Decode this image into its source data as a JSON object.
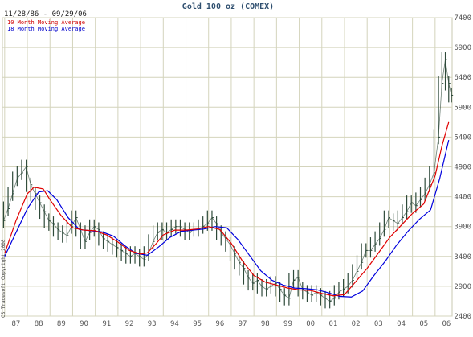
{
  "chart_data": {
    "type": "line",
    "title": "Gold 100 oz (COMEX)",
    "date_range": "11/28/86 - 09/29/06",
    "copyright": "CS Tradesoft Copyright 2008",
    "x_tick_labels": [
      "87",
      "88",
      "89",
      "90",
      "91",
      "92",
      "93",
      "94",
      "95",
      "96",
      "97",
      "98",
      "99",
      "00",
      "01",
      "02",
      "03",
      "04",
      "05",
      "06"
    ],
    "x_ticks_year": [
      1987,
      1988,
      1989,
      1990,
      1991,
      1992,
      1993,
      1994,
      1995,
      1996,
      1997,
      1998,
      1999,
      2000,
      2001,
      2002,
      2003,
      2004,
      2005,
      2006
    ],
    "xlim": [
      1986.9,
      2006.75
    ],
    "ylim": [
      2400,
      7400
    ],
    "y_ticks": [
      2400,
      2900,
      3400,
      3900,
      4400,
      4900,
      5400,
      5900,
      6400,
      6900,
      7400
    ],
    "grid": true,
    "legend_position": "top-left",
    "colors": {
      "price": "#2e4a3a",
      "ma10": "#e00000",
      "ma18": "#0000dd",
      "grid": "#d4d4bc",
      "title": "#2f4f6f"
    },
    "series": [
      {
        "name": "10 Month Moving Average",
        "color": "#e00000",
        "x": [
          1987.0,
          1987.5,
          1988.0,
          1988.3,
          1988.7,
          1989.0,
          1989.5,
          1990.0,
          1990.5,
          1991.0,
          1991.5,
          1992.0,
          1992.5,
          1993.0,
          1993.3,
          1993.7,
          1994.0,
          1994.5,
          1995.0,
          1995.5,
          1996.0,
          1996.5,
          1997.0,
          1997.5,
          1998.0,
          1998.5,
          1999.0,
          1999.5,
          2000.0,
          2000.5,
          2001.0,
          2001.5,
          2002.0,
          2002.5,
          2003.0,
          2003.5,
          2004.0,
          2004.5,
          2005.0,
          2005.5,
          2006.0,
          2006.3,
          2006.6
        ],
        "values": [
          3450,
          4000,
          4450,
          4560,
          4530,
          4350,
          4080,
          3880,
          3840,
          3830,
          3760,
          3640,
          3500,
          3440,
          3460,
          3620,
          3760,
          3840,
          3840,
          3860,
          3900,
          3850,
          3620,
          3320,
          3080,
          2970,
          2920,
          2870,
          2840,
          2830,
          2780,
          2740,
          2760,
          2980,
          3200,
          3460,
          3720,
          3920,
          4120,
          4280,
          4750,
          5250,
          5650
        ]
      },
      {
        "name": "18 Month Moving Average",
        "color": "#0000dd",
        "x": [
          1987.0,
          1987.5,
          1988.0,
          1988.5,
          1988.9,
          1989.3,
          1989.8,
          1990.3,
          1990.8,
          1991.3,
          1991.8,
          1992.3,
          1992.8,
          1993.3,
          1993.8,
          1994.3,
          1994.8,
          1995.3,
          1995.8,
          1996.3,
          1996.8,
          1997.3,
          1997.8,
          1998.3,
          1998.8,
          1999.3,
          1999.8,
          2000.3,
          2000.8,
          2001.3,
          2001.8,
          2002.3,
          2002.8,
          2003.3,
          2003.8,
          2004.3,
          2004.8,
          2005.3,
          2005.8,
          2006.2,
          2006.6
        ],
        "values": [
          3400,
          3800,
          4200,
          4480,
          4500,
          4350,
          4050,
          3850,
          3830,
          3810,
          3740,
          3580,
          3450,
          3420,
          3560,
          3720,
          3820,
          3840,
          3860,
          3900,
          3880,
          3680,
          3420,
          3160,
          3000,
          2920,
          2870,
          2860,
          2840,
          2790,
          2730,
          2720,
          2820,
          3080,
          3320,
          3590,
          3820,
          4020,
          4180,
          4700,
          5350
        ]
      },
      {
        "name": "Gold 100 oz (COMEX)",
        "color": "#2e4a3a",
        "x": [
          1986.95,
          1987.15,
          1987.35,
          1987.55,
          1987.75,
          1987.95,
          1988.15,
          1988.35,
          1988.55,
          1988.75,
          1988.95,
          1989.15,
          1989.35,
          1989.55,
          1989.75,
          1989.95,
          1990.15,
          1990.35,
          1990.55,
          1990.75,
          1990.95,
          1991.15,
          1991.35,
          1991.55,
          1991.75,
          1991.95,
          1992.15,
          1992.35,
          1992.55,
          1992.75,
          1992.95,
          1993.15,
          1993.35,
          1993.55,
          1993.75,
          1993.95,
          1994.15,
          1994.35,
          1994.55,
          1994.75,
          1994.95,
          1995.15,
          1995.35,
          1995.55,
          1995.75,
          1995.95,
          1996.15,
          1996.35,
          1996.55,
          1996.75,
          1996.95,
          1997.15,
          1997.35,
          1997.55,
          1997.75,
          1997.95,
          1998.15,
          1998.35,
          1998.55,
          1998.75,
          1998.95,
          1999.15,
          1999.35,
          1999.55,
          1999.75,
          1999.95,
          2000.15,
          2000.35,
          2000.55,
          2000.75,
          2000.95,
          2001.15,
          2001.35,
          2001.55,
          2001.75,
          2001.95,
          2002.15,
          2002.35,
          2002.55,
          2002.75,
          2002.95,
          2003.15,
          2003.35,
          2003.55,
          2003.75,
          2003.95,
          2004.15,
          2004.35,
          2004.55,
          2004.75,
          2004.95,
          2005.15,
          2005.35,
          2005.55,
          2005.75,
          2005.95,
          2006.15,
          2006.3,
          2006.45,
          2006.6,
          2006.72
        ],
        "values": [
          4000,
          4200,
          4450,
          4700,
          4800,
          4900,
          4600,
          4450,
          4300,
          4150,
          4000,
          3950,
          3850,
          3800,
          3750,
          3900,
          4050,
          3850,
          3650,
          3800,
          3900,
          3850,
          3700,
          3650,
          3600,
          3550,
          3500,
          3450,
          3400,
          3450,
          3400,
          3350,
          3450,
          3650,
          3800,
          3850,
          3800,
          3850,
          3900,
          3900,
          3850,
          3800,
          3850,
          3850,
          3900,
          3950,
          4050,
          3950,
          3800,
          3700,
          3600,
          3450,
          3300,
          3200,
          3050,
          2950,
          3000,
          2900,
          2850,
          2900,
          2950,
          2850,
          2750,
          2700,
          3000,
          3050,
          2850,
          2800,
          2750,
          2800,
          2750,
          2700,
          2650,
          2700,
          2800,
          2850,
          2900,
          3000,
          3150,
          3300,
          3500,
          3500,
          3600,
          3700,
          3850,
          4050,
          4000,
          3950,
          4050,
          4150,
          4300,
          4250,
          4350,
          4450,
          4600,
          4800,
          5400,
          6300,
          6700,
          6300,
          6100
        ]
      }
    ]
  }
}
